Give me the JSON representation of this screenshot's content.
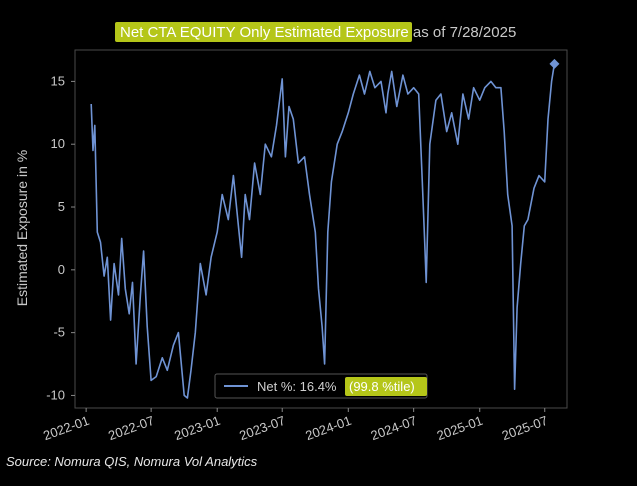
{
  "chart_data": {
    "type": "line",
    "title_highlighted": "Net CTA EQUITY Only Estimated Exposure",
    "title_rest": " as of 7/28/2025",
    "xlabel": "",
    "ylabel": "Estimated Exposure in %",
    "y_ticks": [
      -10,
      -5,
      0,
      5,
      10,
      15
    ],
    "ylim": [
      -11,
      17.5
    ],
    "x_ticks": [
      "2022-01",
      "2022-07",
      "2023-01",
      "2023-07",
      "2024-01",
      "2024-07",
      "2025-01",
      "2025-07"
    ],
    "xlim": [
      "2021-12-01",
      "2025-09-01"
    ],
    "grid": false,
    "legend_position": "bottom-center",
    "series": [
      {
        "name": "Net %",
        "color": "#6f93d4",
        "x": [
          "2022-01-15",
          "2022-01-20",
          "2022-01-25",
          "2022-02-01",
          "2022-02-10",
          "2022-02-20",
          "2022-03-01",
          "2022-03-10",
          "2022-03-20",
          "2022-04-01",
          "2022-04-10",
          "2022-04-20",
          "2022-05-01",
          "2022-05-10",
          "2022-05-20",
          "2022-06-01",
          "2022-06-10",
          "2022-06-20",
          "2022-07-01",
          "2022-07-15",
          "2022-08-01",
          "2022-08-15",
          "2022-09-01",
          "2022-09-15",
          "2022-10-01",
          "2022-10-10",
          "2022-10-20",
          "2022-11-01",
          "2022-11-15",
          "2022-12-01",
          "2022-12-15",
          "2023-01-01",
          "2023-01-15",
          "2023-02-01",
          "2023-02-15",
          "2023-03-01",
          "2023-03-10",
          "2023-03-20",
          "2023-04-01",
          "2023-04-15",
          "2023-05-01",
          "2023-05-15",
          "2023-06-01",
          "2023-06-15",
          "2023-07-01",
          "2023-07-10",
          "2023-07-20",
          "2023-08-01",
          "2023-08-15",
          "2023-09-01",
          "2023-09-15",
          "2023-10-01",
          "2023-10-10",
          "2023-10-20",
          "2023-10-27",
          "2023-11-05",
          "2023-11-15",
          "2023-12-01",
          "2023-12-15",
          "2024-01-01",
          "2024-01-15",
          "2024-02-01",
          "2024-02-15",
          "2024-03-01",
          "2024-03-15",
          "2024-04-01",
          "2024-04-15",
          "2024-04-20",
          "2024-05-01",
          "2024-05-15",
          "2024-06-01",
          "2024-06-15",
          "2024-07-01",
          "2024-07-15",
          "2024-07-25",
          "2024-08-01",
          "2024-08-05",
          "2024-08-15",
          "2024-09-01",
          "2024-09-15",
          "2024-10-01",
          "2024-10-15",
          "2024-11-01",
          "2024-11-15",
          "2024-12-01",
          "2024-12-15",
          "2025-01-01",
          "2025-01-15",
          "2025-02-01",
          "2025-02-15",
          "2025-03-01",
          "2025-03-10",
          "2025-03-20",
          "2025-04-01",
          "2025-04-08",
          "2025-04-15",
          "2025-04-25",
          "2025-05-05",
          "2025-05-15",
          "2025-06-01",
          "2025-06-15",
          "2025-07-01",
          "2025-07-10",
          "2025-07-20",
          "2025-07-28"
        ],
        "values": [
          13.2,
          9.5,
          11.5,
          3.0,
          2.2,
          -0.5,
          1.0,
          -4.0,
          0.5,
          -2.0,
          2.5,
          -1.5,
          -3.5,
          -1.0,
          -7.5,
          -2.0,
          1.5,
          -4.5,
          -8.8,
          -8.5,
          -7.0,
          -8.0,
          -6.0,
          -5.0,
          -10.0,
          -10.2,
          -8.0,
          -5.0,
          0.5,
          -2.0,
          1.0,
          3.0,
          6.0,
          4.0,
          7.5,
          3.5,
          1.0,
          6.0,
          4.0,
          8.5,
          6.0,
          10.0,
          9.0,
          11.5,
          15.2,
          9.0,
          13.0,
          12.0,
          8.5,
          9.0,
          6.0,
          3.0,
          -1.5,
          -4.5,
          -7.5,
          3.0,
          7.0,
          10.0,
          11.0,
          12.5,
          14.0,
          15.5,
          14.0,
          15.8,
          14.5,
          15.0,
          12.5,
          14.0,
          15.8,
          13.0,
          15.5,
          14.0,
          14.5,
          14.0,
          7.0,
          2.0,
          -1.0,
          10.0,
          13.5,
          14.0,
          11.0,
          12.5,
          10.0,
          14.0,
          12.0,
          14.5,
          13.5,
          14.5,
          15.0,
          14.5,
          14.5,
          11.0,
          6.0,
          3.5,
          -9.5,
          -3.0,
          0.5,
          3.5,
          4.0,
          6.5,
          7.5,
          7.0,
          12.0,
          15.0,
          16.4
        ]
      }
    ],
    "legend_entry": "Net %:  16.4%",
    "legend_highlight": "(99.8 %tile)",
    "highlight_color": "#b5c619"
  },
  "source": "Source: Nomura QIS, Nomura Vol Analytics"
}
